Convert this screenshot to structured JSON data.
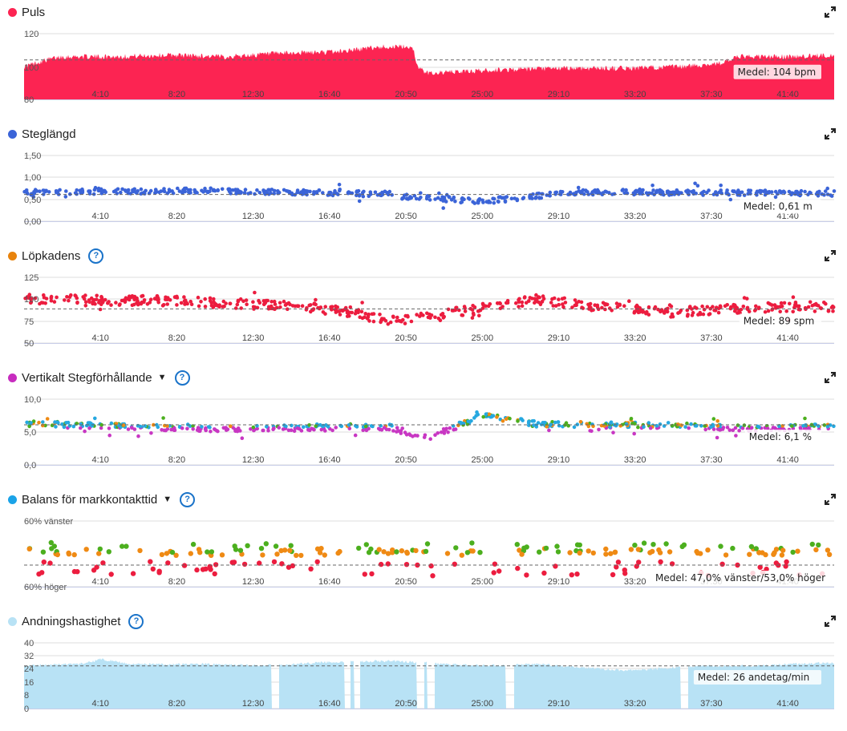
{
  "colors": {
    "puls": "#fc2452",
    "steglangd": "#3b64d8",
    "kadens": "#e8830c",
    "vertikal": "#c72cbf",
    "balans": "#1aa3e8",
    "andning": "#b8e2f5",
    "help": "#1a73c9",
    "green": "#4caf1e",
    "orange": "#ef8a14",
    "red": "#ec1d3f",
    "blue_dot": "#26a8e0",
    "magenta": "#c837c3"
  },
  "x_ticks": [
    "4:10",
    "8:20",
    "12:30",
    "16:40",
    "20:50",
    "25:00",
    "29:10",
    "33:20",
    "37:30",
    "41:40"
  ],
  "panels": [
    {
      "id": "puls",
      "title": "Puls",
      "has_caret": false,
      "has_help": false,
      "icon": "expand-icon",
      "y_labels": [
        "120",
        "100",
        "80"
      ],
      "medel": "Medel: 104 bpm",
      "chart_data": {
        "type": "area",
        "xlabel": "",
        "ylabel": "",
        "ylim": [
          80,
          120
        ],
        "x_unit": "min",
        "x_range": [
          0,
          44.2
        ],
        "mean": 104,
        "series": [
          {
            "values_profile": [
              [
                0,
                100
              ],
              [
                1.2,
                104
              ],
              [
                2,
                106
              ],
              [
                5,
                106
              ],
              [
                8,
                107
              ],
              [
                11,
                106
              ],
              [
                14,
                108
              ],
              [
                17,
                109
              ],
              [
                19.5,
                112
              ],
              [
                21.2,
                112
              ],
              [
                21.5,
                99
              ],
              [
                22,
                96
              ],
              [
                24,
                97
              ],
              [
                26,
                98
              ],
              [
                30,
                99
              ],
              [
                33,
                99
              ],
              [
                36,
                100
              ],
              [
                38,
                102
              ],
              [
                39,
                106
              ],
              [
                42,
                106
              ],
              [
                44.2,
                107
              ]
            ]
          }
        ]
      }
    },
    {
      "id": "steglangd",
      "title": "Steglängd",
      "has_caret": false,
      "has_help": false,
      "y_labels": [
        "1,50",
        "1,00",
        "0,50",
        "0,00"
      ],
      "medel": "Medel: 0,61 m",
      "chart_data": {
        "type": "scatter",
        "ylim": [
          0,
          1.5
        ],
        "mean": 0.61,
        "series": [
          {
            "values_profile": [
              [
                0,
                0.66
              ],
              [
                10,
                0.7
              ],
              [
                20,
                0.62
              ],
              [
                21,
                0.55
              ],
              [
                25,
                0.45
              ],
              [
                30,
                0.66
              ],
              [
                40,
                0.65
              ],
              [
                44.2,
                0.63
              ]
            ]
          }
        ]
      }
    },
    {
      "id": "kadens",
      "title": "Löpkadens",
      "has_caret": false,
      "has_help": true,
      "y_labels": [
        "125",
        "100",
        "75",
        "50"
      ],
      "medel": "Medel: 89 spm",
      "chart_data": {
        "type": "scatter",
        "ylim": [
          50,
          125
        ],
        "mean": 89,
        "series": [
          {
            "values_profile": [
              [
                0,
                100
              ],
              [
                8,
                98
              ],
              [
                15,
                92
              ],
              [
                18,
                85
              ],
              [
                20,
                75
              ],
              [
                22,
                80
              ],
              [
                25,
                90
              ],
              [
                28,
                100
              ],
              [
                31,
                92
              ],
              [
                35,
                85
              ],
              [
                40,
                90
              ],
              [
                44.2,
                92
              ]
            ]
          }
        ]
      }
    },
    {
      "id": "vertikal",
      "title": "Vertikalt Stegförhållande",
      "has_caret": true,
      "has_help": true,
      "y_labels": [
        "10,0",
        "5,0",
        "0,0"
      ],
      "medel": "Medel: 6,1 %",
      "chart_data": {
        "type": "scatter",
        "ylim": [
          0,
          10
        ],
        "mean": 6.1,
        "series": [
          {
            "values_profile": [
              [
                0,
                6.3
              ],
              [
                10,
                5.5
              ],
              [
                20,
                5.7
              ],
              [
                22,
                4.0
              ],
              [
                25,
                7.5
              ],
              [
                28,
                6.2
              ],
              [
                35,
                6.0
              ],
              [
                40,
                5.5
              ],
              [
                44.2,
                5.9
              ]
            ]
          }
        ]
      }
    },
    {
      "id": "balans",
      "title": "Balans för markkontakttid",
      "has_caret": true,
      "has_help": true,
      "y_labels": [
        "60% vänster",
        "60% höger"
      ],
      "medel": "Medel: 47,0% vänster/53,0% höger",
      "chart_data": {
        "type": "scatter",
        "ylim": [
          "60% höger",
          "60% vänster"
        ],
        "mean": "47,0% vänster/53,0% höger"
      }
    },
    {
      "id": "andning",
      "title": "Andningshastighet",
      "has_caret": false,
      "has_help": true,
      "y_labels": [
        "40",
        "32",
        "24",
        "16",
        "8",
        "0"
      ],
      "medel": "Medel: 26 andetag/min",
      "chart_data": {
        "type": "area",
        "ylim": [
          0,
          40
        ],
        "mean": 26,
        "series": [
          {
            "values_profile": [
              [
                0,
                26
              ],
              [
                3,
                27
              ],
              [
                4.2,
                30
              ],
              [
                6,
                27
              ],
              [
                10,
                27
              ],
              [
                13,
                26
              ],
              [
                16,
                28
              ],
              [
                20,
                29
              ],
              [
                25,
                26
              ],
              [
                28,
                27
              ],
              [
                33,
                23
              ],
              [
                37,
                26
              ],
              [
                40,
                26
              ],
              [
                44.2,
                28
              ]
            ]
          }
        ]
      }
    }
  ]
}
